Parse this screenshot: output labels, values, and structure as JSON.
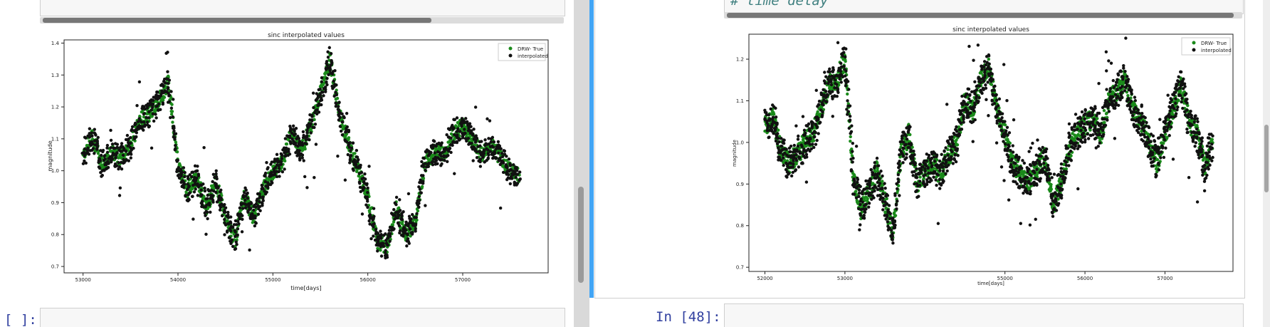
{
  "left_cell": {
    "input_prompt": "[ ]:"
  },
  "right_cell": {
    "code_comment": "# time delay",
    "input_prompt": "In [48]:"
  },
  "chart_data": [
    {
      "type": "scatter",
      "title": "sinc interpolated values",
      "xlabel": "time[days]",
      "ylabel": "magnitude",
      "xlim": [
        52800,
        57900
      ],
      "ylim": [
        0.68,
        1.41
      ],
      "xticks": [
        53000,
        54000,
        55000,
        56000,
        57000
      ],
      "yticks": [
        0.7,
        0.8,
        0.9,
        1.0,
        1.1,
        1.2,
        1.3,
        1.4
      ],
      "grid": false,
      "legend_position": "top-right",
      "series": [
        {
          "name": "DRW- True",
          "color": "#1a8a1a"
        },
        {
          "name": "interpolated",
          "color": "#111111"
        }
      ],
      "x": [
        53000,
        53100,
        53200,
        53300,
        53400,
        53500,
        53600,
        53700,
        53800,
        53900,
        54000,
        54100,
        54200,
        54300,
        54400,
        54500,
        54600,
        54700,
        54800,
        54900,
        55000,
        55100,
        55200,
        55300,
        55400,
        55500,
        55600,
        55700,
        55800,
        55900,
        56000,
        56100,
        56200,
        56300,
        56400,
        56500,
        56600,
        56700,
        56800,
        56900,
        57000,
        57100,
        57200,
        57300,
        57400,
        57500,
        57600
      ],
      "y": [
        1.05,
        1.11,
        1.02,
        1.06,
        1.04,
        1.08,
        1.16,
        1.18,
        1.22,
        1.28,
        1.02,
        0.94,
        0.98,
        0.88,
        0.97,
        0.85,
        0.78,
        0.92,
        0.85,
        0.94,
        1.0,
        1.03,
        1.12,
        1.06,
        1.14,
        1.24,
        1.35,
        1.18,
        1.08,
        1.0,
        0.92,
        0.78,
        0.76,
        0.88,
        0.8,
        0.84,
        1.02,
        1.06,
        1.05,
        1.12,
        1.14,
        1.1,
        1.05,
        1.08,
        1.04,
        1.0,
        0.98
      ]
    },
    {
      "type": "scatter",
      "title": "sinc interpolated values",
      "xlabel": "time[days]",
      "ylabel": "magnitude",
      "xlim": [
        51800,
        57850
      ],
      "ylim": [
        0.69,
        1.26
      ],
      "xticks": [
        52000,
        53000,
        55000,
        56000,
        57000
      ],
      "yticks": [
        0.7,
        0.8,
        0.9,
        1.0,
        1.1,
        1.2
      ],
      "grid": false,
      "legend_position": "top-right",
      "series": [
        {
          "name": "DRW- True",
          "color": "#1a8a1a"
        },
        {
          "name": "interpolated",
          "color": "#111111"
        }
      ],
      "x": [
        52000,
        52100,
        52200,
        52300,
        52400,
        52500,
        52600,
        52700,
        52800,
        52900,
        53000,
        53100,
        53200,
        53300,
        53400,
        53500,
        53600,
        53700,
        53800,
        53900,
        54000,
        54100,
        54200,
        54300,
        54400,
        54500,
        54600,
        54700,
        54800,
        54900,
        55000,
        55100,
        55200,
        55300,
        55400,
        55500,
        55600,
        55700,
        55800,
        55900,
        56000,
        56100,
        56200,
        56300,
        56400,
        56500,
        56600,
        56700,
        56800,
        56900,
        57000,
        57100,
        57200,
        57300,
        57400,
        57500,
        57600
      ],
      "y": [
        1.04,
        1.06,
        0.98,
        0.95,
        0.97,
        1.0,
        1.02,
        1.08,
        1.14,
        1.15,
        1.2,
        0.92,
        0.84,
        0.88,
        0.93,
        0.86,
        0.78,
        0.97,
        1.02,
        0.9,
        0.93,
        0.95,
        0.92,
        0.97,
        1.0,
        1.1,
        1.08,
        1.15,
        1.18,
        1.08,
        1.02,
        0.95,
        0.92,
        0.9,
        0.94,
        0.96,
        0.85,
        0.9,
        0.98,
        1.02,
        1.04,
        1.06,
        1.02,
        1.1,
        1.12,
        1.15,
        1.08,
        1.05,
        1.0,
        0.95,
        1.02,
        1.08,
        1.14,
        1.05,
        1.02,
        0.94,
        1.0
      ]
    }
  ]
}
